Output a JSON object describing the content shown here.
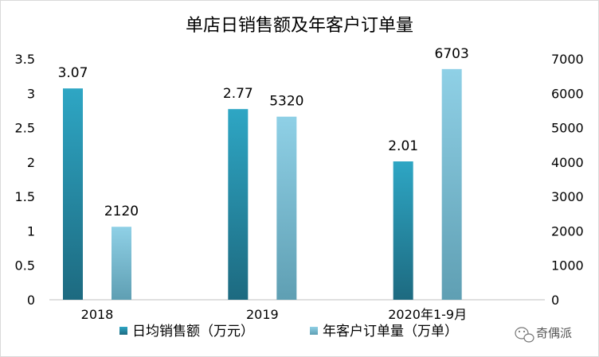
{
  "chart_data": {
    "type": "bar",
    "title": "单店日销售额及年客户订单量",
    "categories": [
      "2018",
      "2019",
      "2020年1-9月"
    ],
    "series": [
      {
        "name": "日均销售额（万元）",
        "axis": "left",
        "values": [
          3.07,
          2.77,
          2.01
        ],
        "labels": [
          "3.07",
          "2.77",
          "2.01"
        ],
        "color_top": "#2ea6c4",
        "color_bottom": "#1d6a80"
      },
      {
        "name": "年客户订单量（万单）",
        "axis": "right",
        "values": [
          2120,
          5320,
          6703
        ],
        "labels": [
          "2120",
          "5320",
          "6703"
        ],
        "color_top": "#8fd0e6",
        "color_bottom": "#5f9fb3"
      }
    ],
    "y_left": {
      "lim": [
        0,
        3.5
      ],
      "ticks": [
        "0",
        "0.5",
        "1",
        "1.5",
        "2",
        "2.5",
        "3",
        "3.5"
      ]
    },
    "y_right": {
      "lim": [
        0,
        7000
      ],
      "ticks": [
        "0",
        "1000",
        "2000",
        "3000",
        "4000",
        "5000",
        "6000",
        "7000"
      ]
    },
    "grid": false,
    "legend_position": "bottom"
  },
  "watermark": {
    "text": "奇偶派",
    "icon": "wechat-icon"
  }
}
